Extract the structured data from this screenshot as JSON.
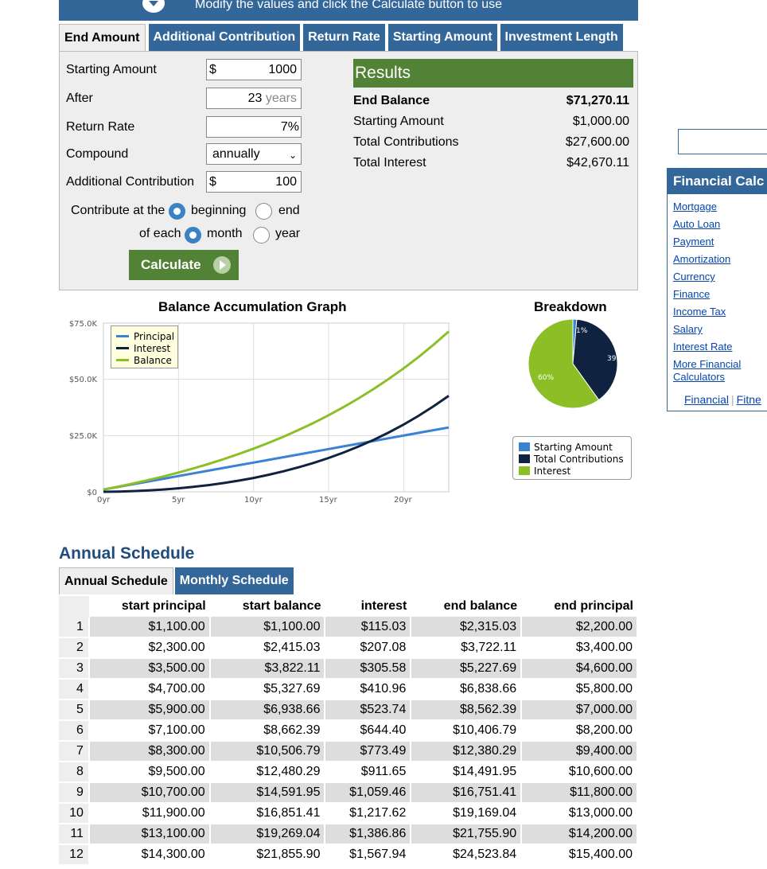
{
  "banner": {
    "text": "Modify the values and click the Calculate button to use"
  },
  "tabs": [
    {
      "label": "End Amount"
    },
    {
      "label": "Additional Contribution"
    },
    {
      "label": "Return Rate"
    },
    {
      "label": "Starting Amount"
    },
    {
      "label": "Investment Length"
    }
  ],
  "form": {
    "starting_amount": {
      "label": "Starting Amount",
      "currency": "$",
      "value": "1000"
    },
    "after": {
      "label": "After",
      "value": "23",
      "suffix": "years"
    },
    "return_rate": {
      "label": "Return Rate",
      "value": "7",
      "suffix": "%"
    },
    "compound": {
      "label": "Compound",
      "selected": "annually"
    },
    "additional": {
      "label": "Additional Contribution",
      "currency": "$",
      "value": "100"
    },
    "contribute_label": "Contribute at the",
    "beginning": "beginning",
    "end": "end",
    "of_each": "of each",
    "month": "month",
    "year": "year",
    "calculate": "Calculate"
  },
  "results": {
    "title": "Results",
    "rows": [
      {
        "label": "End Balance",
        "value": "$71,270.11"
      },
      {
        "label": "Starting Amount",
        "value": "$1,000.00"
      },
      {
        "label": "Total Contributions",
        "value": "$27,600.00"
      },
      {
        "label": "Total Interest",
        "value": "$42,670.11"
      }
    ]
  },
  "colors": {
    "principal": "#3b82d4",
    "interest": "#0f2340",
    "balance": "#8cbf26",
    "brand": "#336699",
    "green": "#518235"
  },
  "chart_data": [
    {
      "type": "line",
      "title": "Balance Accumulation Graph",
      "y_tick_labels": [
        "$75.0K",
        "$50.0K",
        "$25.0K",
        "$0"
      ],
      "x_tick_labels": [
        "0yr",
        "5yr",
        "10yr",
        "15yr",
        "20yr"
      ],
      "ylim": [
        0,
        75000
      ],
      "xlim": [
        0,
        23
      ],
      "legend": "top-left",
      "x": [
        0,
        1,
        2,
        3,
        4,
        5,
        6,
        7,
        8,
        9,
        10,
        11,
        12,
        13,
        14,
        15,
        16,
        17,
        18,
        19,
        20,
        21,
        22,
        23
      ],
      "series": [
        {
          "name": "Principal",
          "color": "principal",
          "values": [
            1000,
            2200,
            3400,
            4600,
            5800,
            7000,
            8200,
            9400,
            10600,
            11800,
            13000,
            14200,
            15400,
            16600,
            17800,
            19000,
            20200,
            21400,
            22600,
            23800,
            25000,
            26200,
            27400,
            28600
          ]
        },
        {
          "name": "Interest",
          "color": "interest",
          "values": [
            0,
            115.03,
            322.11,
            627.69,
            1038.66,
            1562.39,
            2206.79,
            2980.29,
            3891.95,
            4951.41,
            6169.04,
            7555.9,
            9123.84,
            10885.5,
            12854.4,
            15045.1,
            17473.2,
            20155.6,
            23110.2,
            26356.4,
            29915.3,
            33809.5,
            38063.6,
            42670.11
          ]
        },
        {
          "name": "Balance",
          "color": "balance",
          "values": [
            1000,
            2315.03,
            3722.11,
            5227.69,
            6838.66,
            8562.39,
            10406.79,
            12380.29,
            14491.95,
            16751.41,
            19169.04,
            21755.9,
            24523.84,
            27485.5,
            30654.4,
            34045.1,
            37673.2,
            41555.6,
            45710.2,
            50156.4,
            54915.3,
            60009.5,
            65463.6,
            71270.11
          ]
        }
      ]
    },
    {
      "type": "pie",
      "title": "Breakdown",
      "slices": [
        {
          "name": "Starting Amount",
          "color": "principal",
          "value": 1000,
          "label": "1%"
        },
        {
          "name": "Total Contributions",
          "color": "interest",
          "value": 27600,
          "label": "39%"
        },
        {
          "name": "Interest",
          "color": "balance",
          "value": 42670.11,
          "label": "60%"
        }
      ]
    }
  ],
  "schedule": {
    "title": "Annual Schedule",
    "tabs": [
      "Annual Schedule",
      "Monthly Schedule"
    ],
    "headers": [
      "start principal",
      "start balance",
      "interest",
      "end balance",
      "end principal"
    ],
    "rows": [
      [
        "1",
        "$1,100.00",
        "$1,100.00",
        "$115.03",
        "$2,315.03",
        "$2,200.00"
      ],
      [
        "2",
        "$2,300.00",
        "$2,415.03",
        "$207.08",
        "$3,722.11",
        "$3,400.00"
      ],
      [
        "3",
        "$3,500.00",
        "$3,822.11",
        "$305.58",
        "$5,227.69",
        "$4,600.00"
      ],
      [
        "4",
        "$4,700.00",
        "$5,327.69",
        "$410.96",
        "$6,838.66",
        "$5,800.00"
      ],
      [
        "5",
        "$5,900.00",
        "$6,938.66",
        "$523.74",
        "$8,562.39",
        "$7,000.00"
      ],
      [
        "6",
        "$7,100.00",
        "$8,662.39",
        "$644.40",
        "$10,406.79",
        "$8,200.00"
      ],
      [
        "7",
        "$8,300.00",
        "$10,506.79",
        "$773.49",
        "$12,380.29",
        "$9,400.00"
      ],
      [
        "8",
        "$9,500.00",
        "$12,480.29",
        "$911.65",
        "$14,491.95",
        "$10,600.00"
      ],
      [
        "9",
        "$10,700.00",
        "$14,591.95",
        "$1,059.46",
        "$16,751.41",
        "$11,800.00"
      ],
      [
        "10",
        "$11,900.00",
        "$16,851.41",
        "$1,217.62",
        "$19,169.04",
        "$13,000.00"
      ],
      [
        "11",
        "$13,100.00",
        "$19,269.04",
        "$1,386.86",
        "$21,755.90",
        "$14,200.00"
      ],
      [
        "12",
        "$14,300.00",
        "$21,855.90",
        "$1,567.94",
        "$24,523.84",
        "$15,400.00"
      ]
    ]
  },
  "sidebar": {
    "title": "Financial Calc",
    "links": [
      "Mortgage",
      "Auto Loan",
      "Payment",
      "Amortization",
      "Currency",
      "Finance",
      "Income Tax",
      "Salary",
      "Interest Rate",
      "More Financial Calculators"
    ],
    "footer": [
      "Financial",
      "Fitne"
    ]
  }
}
